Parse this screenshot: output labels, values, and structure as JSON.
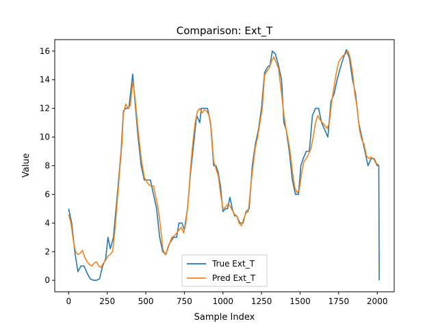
{
  "chart_data": {
    "type": "line",
    "title": "Comparison: Ext_T",
    "xlabel": "Sample Index",
    "ylabel": "Value",
    "xlim": [
      -90,
      2110
    ],
    "ylim": [
      -0.8,
      16.8
    ],
    "xticks": [
      0,
      250,
      500,
      750,
      1000,
      1250,
      1500,
      1750,
      2000
    ],
    "yticks": [
      0,
      2,
      4,
      6,
      8,
      10,
      12,
      14,
      16
    ],
    "grid": false,
    "legend_position": "lower center",
    "series": [
      {
        "name": "True Ext_T",
        "color": "#1f77b4",
        "points": [
          [
            0,
            5.0
          ],
          [
            20,
            4.0
          ],
          [
            40,
            2.0
          ],
          [
            60,
            0.6
          ],
          [
            80,
            1.0
          ],
          [
            100,
            1.0
          ],
          [
            120,
            0.5
          ],
          [
            140,
            0.1
          ],
          [
            160,
            0.0
          ],
          [
            180,
            0.0
          ],
          [
            200,
            0.1
          ],
          [
            220,
            1.0
          ],
          [
            240,
            1.5
          ],
          [
            255,
            3.0
          ],
          [
            270,
            2.2
          ],
          [
            290,
            3.0
          ],
          [
            320,
            6.5
          ],
          [
            340,
            9.0
          ],
          [
            355,
            11.8
          ],
          [
            370,
            12.0
          ],
          [
            390,
            12.0
          ],
          [
            415,
            14.4
          ],
          [
            430,
            12.5
          ],
          [
            450,
            10.0
          ],
          [
            470,
            8.0
          ],
          [
            490,
            7.0
          ],
          [
            510,
            7.0
          ],
          [
            530,
            7.0
          ],
          [
            550,
            6.0
          ],
          [
            570,
            5.0
          ],
          [
            590,
            3.0
          ],
          [
            610,
            2.0
          ],
          [
            630,
            1.8
          ],
          [
            650,
            2.5
          ],
          [
            680,
            3.0
          ],
          [
            700,
            3.0
          ],
          [
            715,
            4.0
          ],
          [
            735,
            4.0
          ],
          [
            750,
            3.5
          ],
          [
            770,
            5.0
          ],
          [
            790,
            7.5
          ],
          [
            810,
            9.5
          ],
          [
            830,
            11.5
          ],
          [
            850,
            11.0
          ],
          [
            860,
            12.0
          ],
          [
            880,
            12.0
          ],
          [
            900,
            12.0
          ],
          [
            920,
            11.0
          ],
          [
            940,
            8.0
          ],
          [
            955,
            8.0
          ],
          [
            970,
            7.5
          ],
          [
            985,
            6.5
          ],
          [
            1000,
            4.8
          ],
          [
            1015,
            5.0
          ],
          [
            1030,
            5.0
          ],
          [
            1045,
            5.8
          ],
          [
            1060,
            5.0
          ],
          [
            1075,
            4.5
          ],
          [
            1090,
            4.5
          ],
          [
            1110,
            4.0
          ],
          [
            1130,
            4.0
          ],
          [
            1150,
            4.8
          ],
          [
            1170,
            5.0
          ],
          [
            1190,
            8.0
          ],
          [
            1210,
            9.5
          ],
          [
            1230,
            10.5
          ],
          [
            1250,
            12.0
          ],
          [
            1270,
            14.5
          ],
          [
            1290,
            14.9
          ],
          [
            1305,
            15.0
          ],
          [
            1320,
            16.0
          ],
          [
            1340,
            15.8
          ],
          [
            1360,
            15.0
          ],
          [
            1380,
            14.0
          ],
          [
            1395,
            11.0
          ],
          [
            1410,
            10.5
          ],
          [
            1430,
            9.0
          ],
          [
            1450,
            7.0
          ],
          [
            1470,
            6.0
          ],
          [
            1490,
            6.0
          ],
          [
            1505,
            8.0
          ],
          [
            1520,
            8.5
          ],
          [
            1540,
            9.0
          ],
          [
            1560,
            9.0
          ],
          [
            1580,
            11.5
          ],
          [
            1600,
            12.0
          ],
          [
            1620,
            12.0
          ],
          [
            1640,
            11.0
          ],
          [
            1660,
            10.5
          ],
          [
            1680,
            10.0
          ],
          [
            1700,
            12.5
          ],
          [
            1720,
            13.0
          ],
          [
            1740,
            14.0
          ],
          [
            1760,
            14.8
          ],
          [
            1780,
            15.5
          ],
          [
            1800,
            16.1
          ],
          [
            1820,
            15.5
          ],
          [
            1840,
            14.0
          ],
          [
            1860,
            13.0
          ],
          [
            1880,
            11.0
          ],
          [
            1900,
            10.0
          ],
          [
            1920,
            9.0
          ],
          [
            1940,
            8.0
          ],
          [
            1960,
            8.5
          ],
          [
            1980,
            8.5
          ],
          [
            2000,
            8.0
          ],
          [
            2010,
            8.0
          ],
          [
            2013,
            0.0
          ]
        ]
      },
      {
        "name": "Pred Ext_T",
        "color": "#ff7f0e",
        "points": [
          [
            0,
            4.6
          ],
          [
            15,
            4.0
          ],
          [
            30,
            2.8
          ],
          [
            45,
            2.0
          ],
          [
            60,
            1.8
          ],
          [
            75,
            1.9
          ],
          [
            90,
            2.1
          ],
          [
            105,
            1.6
          ],
          [
            120,
            1.3
          ],
          [
            135,
            1.1
          ],
          [
            150,
            1.0
          ],
          [
            165,
            1.2
          ],
          [
            180,
            1.3
          ],
          [
            195,
            1.0
          ],
          [
            210,
            0.9
          ],
          [
            225,
            1.2
          ],
          [
            240,
            1.4
          ],
          [
            255,
            1.7
          ],
          [
            270,
            1.8
          ],
          [
            285,
            2.0
          ],
          [
            300,
            3.5
          ],
          [
            315,
            5.5
          ],
          [
            330,
            7.5
          ],
          [
            345,
            9.5
          ],
          [
            355,
            11.6
          ],
          [
            370,
            12.3
          ],
          [
            385,
            12.0
          ],
          [
            400,
            12.2
          ],
          [
            415,
            13.9
          ],
          [
            430,
            12.8
          ],
          [
            450,
            10.5
          ],
          [
            470,
            8.5
          ],
          [
            490,
            7.2
          ],
          [
            510,
            6.8
          ],
          [
            530,
            6.6
          ],
          [
            550,
            6.6
          ],
          [
            565,
            5.8
          ],
          [
            580,
            5.0
          ],
          [
            595,
            3.8
          ],
          [
            610,
            2.2
          ],
          [
            625,
            1.8
          ],
          [
            640,
            2.1
          ],
          [
            655,
            2.6
          ],
          [
            670,
            3.0
          ],
          [
            685,
            3.1
          ],
          [
            700,
            3.3
          ],
          [
            715,
            3.5
          ],
          [
            730,
            3.7
          ],
          [
            745,
            3.3
          ],
          [
            760,
            4.0
          ],
          [
            775,
            5.5
          ],
          [
            790,
            7.8
          ],
          [
            805,
            9.6
          ],
          [
            820,
            11.0
          ],
          [
            835,
            11.8
          ],
          [
            850,
            12.0
          ],
          [
            865,
            11.7
          ],
          [
            880,
            11.9
          ],
          [
            895,
            11.8
          ],
          [
            910,
            11.5
          ],
          [
            925,
            10.5
          ],
          [
            940,
            8.3
          ],
          [
            955,
            7.8
          ],
          [
            970,
            7.3
          ],
          [
            985,
            6.0
          ],
          [
            1000,
            5.0
          ],
          [
            1015,
            5.1
          ],
          [
            1030,
            5.3
          ],
          [
            1045,
            5.2
          ],
          [
            1060,
            4.9
          ],
          [
            1075,
            4.6
          ],
          [
            1090,
            4.5
          ],
          [
            1105,
            4.0
          ],
          [
            1120,
            3.8
          ],
          [
            1135,
            4.3
          ],
          [
            1150,
            4.7
          ],
          [
            1165,
            4.8
          ],
          [
            1180,
            6.5
          ],
          [
            1195,
            8.0
          ],
          [
            1210,
            9.3
          ],
          [
            1225,
            10.0
          ],
          [
            1240,
            11.0
          ],
          [
            1255,
            12.0
          ],
          [
            1270,
            14.3
          ],
          [
            1285,
            14.6
          ],
          [
            1300,
            14.8
          ],
          [
            1315,
            15.3
          ],
          [
            1330,
            15.6
          ],
          [
            1345,
            15.2
          ],
          [
            1360,
            14.8
          ],
          [
            1375,
            13.5
          ],
          [
            1390,
            12.0
          ],
          [
            1405,
            10.8
          ],
          [
            1420,
            10.0
          ],
          [
            1435,
            9.0
          ],
          [
            1450,
            7.6
          ],
          [
            1465,
            6.5
          ],
          [
            1480,
            6.1
          ],
          [
            1495,
            6.3
          ],
          [
            1510,
            7.5
          ],
          [
            1525,
            8.3
          ],
          [
            1540,
            8.5
          ],
          [
            1555,
            8.8
          ],
          [
            1570,
            9.2
          ],
          [
            1585,
            10.0
          ],
          [
            1600,
            11.0
          ],
          [
            1615,
            11.5
          ],
          [
            1630,
            11.2
          ],
          [
            1645,
            11.0
          ],
          [
            1660,
            10.8
          ],
          [
            1675,
            10.6
          ],
          [
            1690,
            11.0
          ],
          [
            1705,
            12.5
          ],
          [
            1720,
            13.5
          ],
          [
            1735,
            14.5
          ],
          [
            1750,
            15.2
          ],
          [
            1765,
            15.5
          ],
          [
            1780,
            15.7
          ],
          [
            1795,
            15.8
          ],
          [
            1810,
            16.0
          ],
          [
            1825,
            15.5
          ],
          [
            1840,
            14.5
          ],
          [
            1855,
            13.0
          ],
          [
            1870,
            12.0
          ],
          [
            1885,
            10.5
          ],
          [
            1900,
            9.8
          ],
          [
            1915,
            9.5
          ],
          [
            1930,
            8.7
          ],
          [
            1945,
            8.5
          ],
          [
            1960,
            8.6
          ],
          [
            1975,
            8.5
          ],
          [
            1990,
            8.2
          ],
          [
            2005,
            8.1
          ],
          [
            2013,
            8.0
          ]
        ]
      }
    ]
  }
}
